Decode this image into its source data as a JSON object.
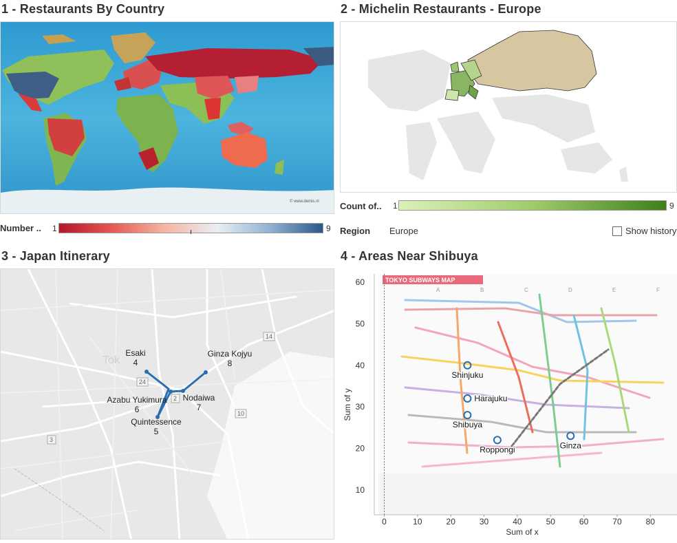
{
  "panels": {
    "p1": {
      "title": "1 - Restaurants By Country"
    },
    "p2": {
      "title": "2 - Michelin Restaurants - Europe"
    },
    "p3": {
      "title": "3 - Japan Itinerary"
    },
    "p4": {
      "title": "4 - Areas Near Shibuya"
    }
  },
  "legend1": {
    "label": "Number ..",
    "min": "1",
    "max": "9",
    "gradient": [
      "#b2182b",
      "#ef8a7b",
      "#f7f7f7",
      "#8fb3d6",
      "#2c5c8a"
    ]
  },
  "legend2": {
    "label": "Count of..",
    "min": "1",
    "max": "9",
    "gradient": [
      "#d9efb5",
      "#3f7f1a"
    ]
  },
  "filters": {
    "region_label": "Region",
    "region_value": "Europe",
    "show_history": "Show history"
  },
  "map1": {
    "credit": "© www.demis.nl"
  },
  "itinerary": {
    "road_labels": [
      "14",
      "24",
      "2",
      "10",
      "3"
    ],
    "stops": [
      {
        "name": "Esaki",
        "order": "4"
      },
      {
        "name": "Azabu Yukimura",
        "order": "6"
      },
      {
        "name": "Quintessence",
        "order": "5"
      },
      {
        "name": "Nodaiwa",
        "order": "7"
      },
      {
        "name": "Ginza Kojyu",
        "order": "8"
      }
    ],
    "faint_label": "Tok"
  },
  "subway_map": {
    "title": "TOKYO SUBWAYS MAP",
    "columns": [
      "A",
      "B",
      "C",
      "D",
      "E",
      "F"
    ]
  },
  "chart_data": {
    "type": "scatter",
    "xlabel": "Sum of x",
    "ylabel": "Sum of y",
    "xlim": [
      -3,
      88
    ],
    "ylim": [
      4,
      62
    ],
    "xticks": [
      0,
      10,
      20,
      30,
      40,
      50,
      60,
      70,
      80
    ],
    "yticks": [
      10,
      20,
      30,
      40,
      50,
      60
    ],
    "points": [
      {
        "label": "Shinjuku",
        "x": 25,
        "y": 40
      },
      {
        "label": "Harajuku",
        "x": 25,
        "y": 32
      },
      {
        "label": "Shibuya",
        "x": 25,
        "y": 28
      },
      {
        "label": "Roppongi",
        "x": 34,
        "y": 22
      },
      {
        "label": "Ginza",
        "x": 56,
        "y": 23
      }
    ],
    "marker_color": "#2a6eb0"
  }
}
